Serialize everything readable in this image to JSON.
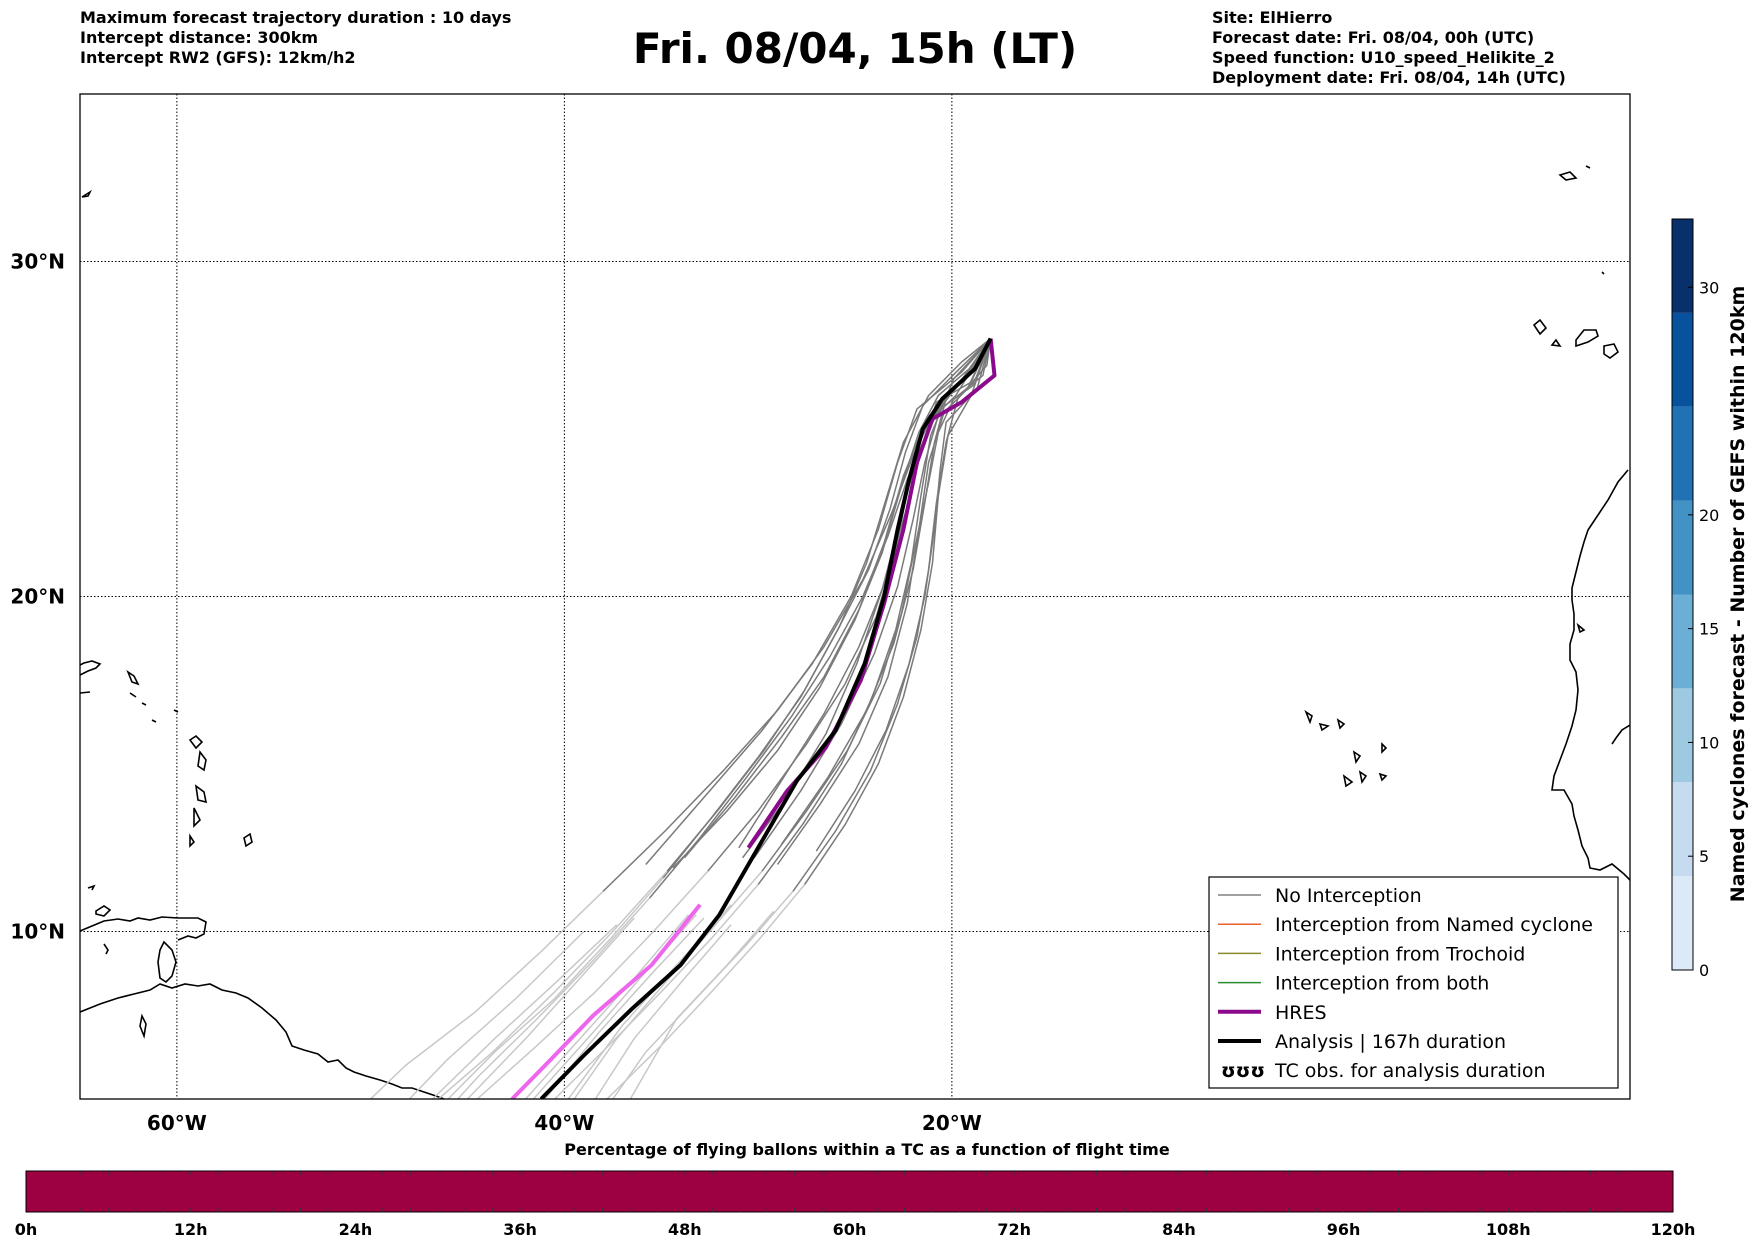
{
  "header": {
    "left": [
      "Maximum forecast trajectory duration : 10 days",
      "Intercept distance: 300km",
      "Intercept RW2 (GFS):  12km/h2"
    ],
    "right": [
      "Site: ElHierro",
      "Forecast date: Fri. 08/04, 00h (UTC)",
      "Speed function: U10_speed_Helikite_2",
      "Deployment date: Fri. 08/04, 14h (UTC)"
    ],
    "title": "Fri. 08/04, 15h (LT)"
  },
  "map": {
    "lon_range": [
      -65,
      15
    ],
    "lat_range": [
      5,
      35
    ],
    "lat_ticks": [
      {
        "value": 30,
        "label": "30°N"
      },
      {
        "value": 20,
        "label": "20°N"
      },
      {
        "value": 10,
        "label": "10°N"
      }
    ],
    "lon_ticks": [
      {
        "value": -60,
        "label": "60°W"
      },
      {
        "value": -40,
        "label": "40°W"
      },
      {
        "value": -20,
        "label": "20°W"
      }
    ],
    "grid": "dotted",
    "deployment_site": {
      "lon": -18,
      "lat": 27.7
    }
  },
  "legend": {
    "items": [
      {
        "label": "No Interception",
        "color": "#808080",
        "style": "thin"
      },
      {
        "label": "Interception from Named cyclone",
        "color": "#e8622a",
        "style": "thin"
      },
      {
        "label": "Interception from Trochoid",
        "color": "#8a8a2a",
        "style": "thin"
      },
      {
        "label": "Interception from both",
        "color": "#2e8b2e",
        "style": "thin"
      },
      {
        "label": "HRES",
        "color": "#8b0a8b",
        "style": "thick"
      },
      {
        "label": "Analysis | 167h duration",
        "color": "#000000",
        "style": "thick"
      },
      {
        "label": "TC obs. for analysis duration",
        "color": "#000000",
        "style": "symbol",
        "symbol": "ʊʊʊ"
      }
    ]
  },
  "colorbar": {
    "label": "Named cyclones forecast - Number of GEFS within 120km",
    "ticks": [
      0,
      5,
      10,
      15,
      20,
      30
    ],
    "range": [
      0,
      33
    ],
    "colors": [
      "#dce9f6",
      "#c6dbef",
      "#9ecae1",
      "#6baed6",
      "#4292c6",
      "#2171b5",
      "#08519c",
      "#08306b"
    ]
  },
  "time_bar": {
    "title": "Percentage of flying ballons within a TC as a function of flight time",
    "ticks": [
      "0h",
      "12h",
      "24h",
      "36h",
      "48h",
      "60h",
      "72h",
      "84h",
      "96h",
      "108h",
      "120h"
    ],
    "fill_color": "#9e0142",
    "percent_in_tc": 0
  },
  "tracks": {
    "analysis": [
      [
        -18.0,
        27.7
      ],
      [
        -18.8,
        26.8
      ],
      [
        -20.5,
        25.9
      ],
      [
        -21.5,
        25.0
      ],
      [
        -22.2,
        23.5
      ],
      [
        -22.8,
        22.0
      ],
      [
        -23.5,
        20.0
      ],
      [
        -24.5,
        18.0
      ],
      [
        -26.0,
        16.0
      ],
      [
        -28.0,
        14.5
      ],
      [
        -30.0,
        12.5
      ],
      [
        -32.0,
        10.5
      ],
      [
        -34.0,
        9.0
      ],
      [
        -36.5,
        7.7
      ],
      [
        -39.0,
        6.3
      ],
      [
        -41.2,
        5.0
      ]
    ],
    "hres": [
      [
        -18.0,
        27.7
      ],
      [
        -17.8,
        26.6
      ],
      [
        -19.5,
        25.8
      ],
      [
        -21.0,
        25.3
      ],
      [
        -21.8,
        24.0
      ],
      [
        -22.5,
        22.0
      ],
      [
        -23.5,
        19.8
      ],
      [
        -24.7,
        17.5
      ],
      [
        -26.5,
        15.5
      ],
      [
        -28.5,
        14.2
      ],
      [
        -30.5,
        12.5
      ],
      [
        -33.0,
        10.8
      ],
      [
        -35.5,
        9.0
      ],
      [
        -38.5,
        7.5
      ],
      [
        -41.0,
        6.0
      ],
      [
        -42.7,
        5.0
      ]
    ],
    "ensemble": [
      [
        [
          -18.0,
          27.7
        ],
        [
          -19.5,
          26.7
        ],
        [
          -21.8,
          25.6
        ],
        [
          -22.8,
          24.0
        ],
        [
          -23.8,
          22.0
        ],
        [
          -25.2,
          20.0
        ],
        [
          -27.2,
          18.0
        ],
        [
          -29.8,
          16.0
        ],
        [
          -32.8,
          14.0
        ],
        [
          -35.8,
          12.0
        ],
        [
          -39.0,
          10.0
        ],
        [
          -42.5,
          8.0
        ],
        [
          -46.0,
          6.2
        ],
        [
          -48.0,
          5.0
        ]
      ],
      [
        [
          -18.0,
          27.7
        ],
        [
          -19.0,
          26.4
        ],
        [
          -20.8,
          25.8
        ],
        [
          -21.6,
          24.3
        ],
        [
          -22.4,
          22.5
        ],
        [
          -23.4,
          20.5
        ],
        [
          -24.8,
          18.5
        ],
        [
          -26.6,
          16.5
        ],
        [
          -28.8,
          14.5
        ],
        [
          -31.0,
          12.5
        ],
        [
          -33.6,
          10.5
        ],
        [
          -36.4,
          8.6
        ],
        [
          -39.2,
          6.8
        ],
        [
          -42.0,
          5.0
        ]
      ],
      [
        [
          -18.0,
          27.7
        ],
        [
          -18.6,
          26.9
        ],
        [
          -20.2,
          26.1
        ],
        [
          -20.9,
          24.6
        ],
        [
          -21.4,
          22.8
        ],
        [
          -22.0,
          20.8
        ],
        [
          -23.0,
          18.6
        ],
        [
          -24.4,
          16.6
        ],
        [
          -26.4,
          14.6
        ],
        [
          -28.8,
          12.6
        ],
        [
          -31.4,
          10.8
        ],
        [
          -34.2,
          9.0
        ],
        [
          -37.0,
          7.2
        ],
        [
          -39.8,
          5.0
        ]
      ],
      [
        [
          -18.0,
          27.7
        ],
        [
          -19.2,
          26.2
        ],
        [
          -20.4,
          25.5
        ],
        [
          -21.2,
          24.0
        ],
        [
          -21.7,
          22.0
        ],
        [
          -22.3,
          19.8
        ],
        [
          -23.3,
          17.6
        ],
        [
          -24.8,
          15.6
        ],
        [
          -26.8,
          13.8
        ],
        [
          -29.0,
          12.0
        ],
        [
          -31.4,
          10.2
        ],
        [
          -33.8,
          8.6
        ],
        [
          -36.4,
          6.8
        ],
        [
          -38.4,
          5.0
        ]
      ],
      [
        [
          -18.0,
          27.7
        ],
        [
          -19.8,
          26.0
        ],
        [
          -21.4,
          25.1
        ],
        [
          -22.2,
          23.4
        ],
        [
          -22.9,
          21.4
        ],
        [
          -23.9,
          19.4
        ],
        [
          -25.5,
          17.4
        ],
        [
          -27.5,
          15.6
        ],
        [
          -30.0,
          13.6
        ],
        [
          -32.6,
          11.8
        ],
        [
          -35.4,
          10.0
        ],
        [
          -38.4,
          8.2
        ],
        [
          -41.6,
          6.5
        ],
        [
          -44.5,
          5.0
        ]
      ],
      [
        [
          -18.0,
          27.7
        ],
        [
          -18.4,
          26.6
        ],
        [
          -19.9,
          25.9
        ],
        [
          -20.7,
          24.9
        ],
        [
          -21.2,
          23.4
        ],
        [
          -21.9,
          21.5
        ],
        [
          -22.6,
          19.5
        ],
        [
          -23.7,
          17.4
        ],
        [
          -25.4,
          15.4
        ],
        [
          -27.5,
          13.6
        ],
        [
          -29.8,
          11.8
        ],
        [
          -32.2,
          10.2
        ],
        [
          -34.6,
          8.6
        ],
        [
          -37.3,
          6.8
        ],
        [
          -39.5,
          5.0
        ]
      ],
      [
        [
          -18.0,
          27.7
        ],
        [
          -19.4,
          26.5
        ],
        [
          -21.0,
          25.4
        ],
        [
          -22.0,
          24.2
        ],
        [
          -23.1,
          22.5
        ],
        [
          -24.6,
          20.5
        ],
        [
          -26.6,
          18.5
        ],
        [
          -29.0,
          16.6
        ],
        [
          -31.8,
          14.8
        ],
        [
          -34.8,
          13.0
        ],
        [
          -38.0,
          11.2
        ],
        [
          -41.2,
          9.4
        ],
        [
          -44.6,
          7.6
        ],
        [
          -48.2,
          6.0
        ],
        [
          -50.0,
          5.0
        ]
      ],
      [
        [
          -18.0,
          27.7
        ],
        [
          -18.9,
          26.3
        ],
        [
          -20.6,
          25.6
        ],
        [
          -21.4,
          24.0
        ],
        [
          -22.0,
          22.3
        ],
        [
          -22.8,
          20.3
        ],
        [
          -24.0,
          18.3
        ],
        [
          -25.7,
          16.2
        ],
        [
          -27.8,
          14.2
        ],
        [
          -30.2,
          12.2
        ],
        [
          -32.8,
          10.4
        ],
        [
          -35.4,
          8.8
        ],
        [
          -38.2,
          7.0
        ],
        [
          -41.0,
          5.0
        ]
      ],
      [
        [
          -18.0,
          27.7
        ],
        [
          -19.6,
          26.8
        ],
        [
          -21.5,
          25.7
        ],
        [
          -22.4,
          24.3
        ],
        [
          -23.2,
          22.6
        ],
        [
          -24.3,
          20.8
        ],
        [
          -25.9,
          19.0
        ],
        [
          -27.8,
          17.0
        ],
        [
          -30.0,
          15.2
        ],
        [
          -32.4,
          13.4
        ],
        [
          -34.9,
          11.6
        ],
        [
          -37.6,
          9.8
        ],
        [
          -40.5,
          8.0
        ],
        [
          -43.6,
          6.4
        ],
        [
          -46.0,
          5.0
        ]
      ],
      [
        [
          -18.0,
          27.7
        ],
        [
          -18.2,
          26.9
        ],
        [
          -19.7,
          25.9
        ],
        [
          -20.3,
          24.6
        ],
        [
          -20.8,
          22.8
        ],
        [
          -21.2,
          20.8
        ],
        [
          -21.8,
          18.8
        ],
        [
          -22.8,
          16.8
        ],
        [
          -24.2,
          14.8
        ],
        [
          -26.0,
          13.0
        ],
        [
          -28.2,
          11.2
        ],
        [
          -30.6,
          9.6
        ],
        [
          -33.2,
          8.0
        ],
        [
          -35.8,
          6.4
        ],
        [
          -37.5,
          5.0
        ]
      ],
      [
        [
          -18.0,
          27.7
        ],
        [
          -19.3,
          26.6
        ],
        [
          -21.3,
          25.3
        ],
        [
          -22.5,
          23.6
        ],
        [
          -23.5,
          21.6
        ],
        [
          -24.8,
          19.6
        ],
        [
          -26.6,
          17.6
        ],
        [
          -28.8,
          15.8
        ],
        [
          -31.2,
          14.0
        ],
        [
          -33.8,
          12.2
        ],
        [
          -36.4,
          10.4
        ],
        [
          -39.2,
          8.6
        ],
        [
          -42.0,
          6.8
        ],
        [
          -45.0,
          5.0
        ]
      ],
      [
        [
          -18.0,
          27.7
        ],
        [
          -18.7,
          26.2
        ],
        [
          -20.3,
          25.2
        ],
        [
          -20.6,
          23.8
        ],
        [
          -20.9,
          22.0
        ],
        [
          -21.4,
          20.0
        ],
        [
          -22.2,
          18.0
        ],
        [
          -23.4,
          16.0
        ],
        [
          -25.0,
          14.2
        ],
        [
          -27.0,
          12.4
        ],
        [
          -29.2,
          10.6
        ],
        [
          -31.6,
          9.0
        ],
        [
          -34.2,
          7.4
        ],
        [
          -36.6,
          5.0
        ]
      ],
      [
        [
          -18.0,
          27.7
        ],
        [
          -19.1,
          26.8
        ],
        [
          -20.7,
          26.0
        ],
        [
          -21.7,
          24.9
        ],
        [
          -22.6,
          23.3
        ],
        [
          -23.6,
          21.3
        ],
        [
          -25.0,
          19.3
        ],
        [
          -26.8,
          17.3
        ],
        [
          -29.0,
          15.4
        ],
        [
          -31.6,
          13.6
        ],
        [
          -34.4,
          11.9
        ],
        [
          -37.3,
          10.2
        ],
        [
          -40.4,
          8.5
        ],
        [
          -43.6,
          6.8
        ],
        [
          -46.8,
          5.0
        ]
      ],
      [
        [
          -18.0,
          27.7
        ],
        [
          -19.9,
          26.5
        ],
        [
          -21.1,
          24.8
        ],
        [
          -21.6,
          23.0
        ],
        [
          -22.1,
          21.0
        ],
        [
          -22.9,
          19.0
        ],
        [
          -24.1,
          17.0
        ],
        [
          -25.7,
          15.0
        ],
        [
          -27.7,
          13.2
        ],
        [
          -30.0,
          11.4
        ],
        [
          -32.4,
          9.8
        ],
        [
          -35.0,
          8.2
        ],
        [
          -37.7,
          6.6
        ],
        [
          -40.5,
          5.0
        ]
      ],
      [
        [
          -18.0,
          27.7
        ],
        [
          -18.5,
          27.0
        ],
        [
          -20.0,
          26.2
        ],
        [
          -21.2,
          25.0
        ],
        [
          -22.3,
          23.5
        ],
        [
          -23.3,
          21.8
        ],
        [
          -24.6,
          20.0
        ],
        [
          -26.3,
          18.2
        ],
        [
          -28.3,
          16.4
        ],
        [
          -30.6,
          14.6
        ],
        [
          -33.0,
          12.8
        ],
        [
          -35.6,
          11.0
        ],
        [
          -38.4,
          9.2
        ],
        [
          -41.4,
          7.4
        ],
        [
          -44.4,
          5.7
        ],
        [
          -45.5,
          5.0
        ]
      ],
      [
        [
          -18.0,
          27.7
        ],
        [
          -19.7,
          26.3
        ],
        [
          -20.9,
          25.4
        ],
        [
          -21.9,
          24.0
        ],
        [
          -22.7,
          22.2
        ],
        [
          -23.6,
          20.2
        ],
        [
          -24.9,
          18.0
        ],
        [
          -26.5,
          15.9
        ],
        [
          -28.5,
          14.0
        ],
        [
          -30.8,
          12.2
        ],
        [
          -33.2,
          10.5
        ],
        [
          -35.8,
          8.8
        ],
        [
          -38.5,
          7.0
        ],
        [
          -41.6,
          5.0
        ]
      ],
      [
        [
          -18.0,
          27.7
        ],
        [
          -19.0,
          26.0
        ],
        [
          -20.2,
          24.8
        ],
        [
          -20.7,
          23.0
        ],
        [
          -21.0,
          21.0
        ],
        [
          -21.6,
          19.0
        ],
        [
          -22.5,
          17.0
        ],
        [
          -23.8,
          15.0
        ],
        [
          -25.5,
          13.2
        ],
        [
          -27.6,
          11.4
        ],
        [
          -29.9,
          9.8
        ],
        [
          -32.4,
          8.2
        ],
        [
          -35.0,
          6.6
        ],
        [
          -37.8,
          5.0
        ]
      ],
      [
        [
          -18.0,
          27.7
        ],
        [
          -19.5,
          27.0
        ],
        [
          -21.2,
          26.0
        ],
        [
          -22.5,
          24.6
        ],
        [
          -23.4,
          22.9
        ],
        [
          -24.4,
          21.0
        ],
        [
          -25.8,
          19.1
        ],
        [
          -27.6,
          17.2
        ],
        [
          -29.7,
          15.4
        ],
        [
          -32.1,
          13.6
        ],
        [
          -34.7,
          11.8
        ],
        [
          -37.5,
          10.0
        ],
        [
          -40.5,
          8.2
        ],
        [
          -43.7,
          6.4
        ],
        [
          -46.5,
          5.0
        ]
      ]
    ]
  }
}
